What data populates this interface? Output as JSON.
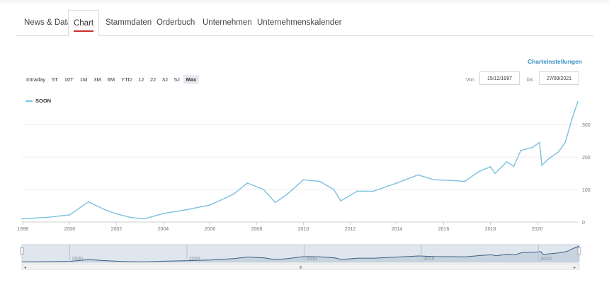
{
  "tabs": [
    {
      "label": "News & Data"
    },
    {
      "label": "Chart"
    },
    {
      "label": "Stammdaten"
    },
    {
      "label": "Orderbuch"
    },
    {
      "label": "Unternehmen"
    },
    {
      "label": "Unternehmenskalender"
    }
  ],
  "active_tab": "Chart",
  "chart_settings_link": "Charteinstellungen",
  "range_buttons": [
    "Intraday",
    "5T",
    "10T",
    "1M",
    "3M",
    "6M",
    "YTD",
    "1J",
    "2J",
    "3J",
    "5J",
    "Max"
  ],
  "active_range": "Max",
  "date_range": {
    "from_label": "Von",
    "from_value": "15/12/1997",
    "to_label": "bis",
    "to_value": "27/09/2021"
  },
  "colors": {
    "line": "#7cc0dd",
    "accent": "#3a8fc1",
    "active_underline": "#c9302c"
  },
  "chart_data": {
    "type": "line",
    "title": "",
    "series": [
      {
        "name": "SOON",
        "x": [
          1997.96,
          1999.0,
          2000.0,
          2000.8,
          2001.5,
          2002.0,
          2002.6,
          2003.2,
          2004.0,
          2005.0,
          2006.0,
          2007.0,
          2007.6,
          2008.3,
          2008.8,
          2009.3,
          2010.0,
          2010.7,
          2011.3,
          2011.6,
          2012.3,
          2013.0,
          2014.0,
          2014.9,
          2015.6,
          2016.3,
          2016.9,
          2017.5,
          2018.0,
          2018.2,
          2018.7,
          2019.0,
          2019.3,
          2019.8,
          2020.1,
          2020.2,
          2020.5,
          2020.9,
          2021.2,
          2021.5,
          2021.74
        ],
        "y": [
          10,
          14,
          22,
          62,
          38,
          25,
          14,
          10,
          26,
          38,
          52,
          85,
          120,
          100,
          60,
          85,
          130,
          125,
          100,
          65,
          95,
          95,
          120,
          145,
          130,
          128,
          125,
          155,
          170,
          150,
          185,
          172,
          220,
          230,
          245,
          175,
          195,
          215,
          245,
          320,
          370
        ]
      }
    ],
    "x_ticks": [
      "1998",
      "2000",
      "2002",
      "2004",
      "2006",
      "2008",
      "2010",
      "2012",
      "2014",
      "2016",
      "2018",
      "2020"
    ],
    "y_ticks": [
      "0",
      "100",
      "200",
      "300"
    ],
    "xlim": [
      1997.96,
      2021.74
    ],
    "ylim": [
      0,
      370
    ],
    "grid": true,
    "legend": "top-left",
    "navigator_ticks": [
      "2000",
      "2005",
      "2010",
      "2015",
      "2020"
    ],
    "navigator_handle": "III"
  }
}
